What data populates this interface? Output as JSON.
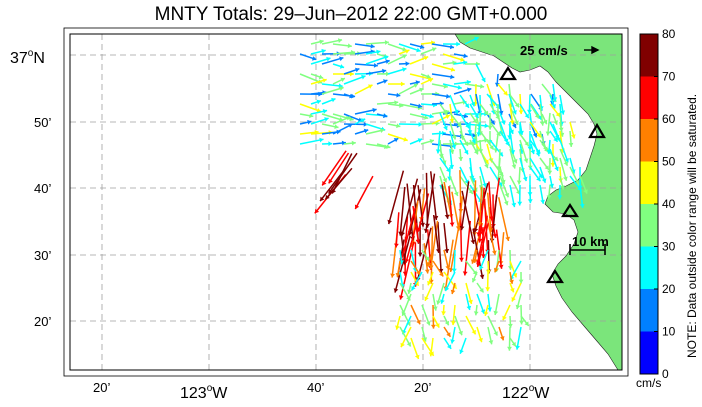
{
  "title": "MNTY Totals: 29–Jun–2012 22:00 GMT+0.000",
  "lat_labels": [
    {
      "text": "37",
      "deg": "o",
      "hemi": "N"
    },
    {
      "text": "50’"
    },
    {
      "text": "40’"
    },
    {
      "text": "30’"
    },
    {
      "text": "20’"
    }
  ],
  "lon_labels": [
    {
      "text": "20’"
    },
    {
      "text": "123",
      "deg": "o",
      "hemi": "W"
    },
    {
      "text": "40’"
    },
    {
      "text": "20’"
    },
    {
      "text": "122",
      "deg": "o",
      "hemi": "W"
    }
  ],
  "reference_vector_label": "25 cm/s",
  "scale_bar_label": "10 km",
  "colorbar": {
    "ticks": [
      "0",
      "10",
      "20",
      "30",
      "40",
      "50",
      "60",
      "70",
      "80"
    ],
    "colors": [
      "#0000ff",
      "#0080ff",
      "#00ffff",
      "#80ff80",
      "#ffff00",
      "#ff8000",
      "#ff0000",
      "#800000"
    ],
    "unit": "cm/s",
    "note": "NOTE: Data outside color range will be saturated."
  },
  "colors": {
    "land": "#7be57b",
    "ocean": "#ffffff",
    "grid": "#a0a0a0"
  },
  "stations": [
    "radar-site-1",
    "radar-site-2",
    "radar-site-3",
    "radar-site-4"
  ]
}
